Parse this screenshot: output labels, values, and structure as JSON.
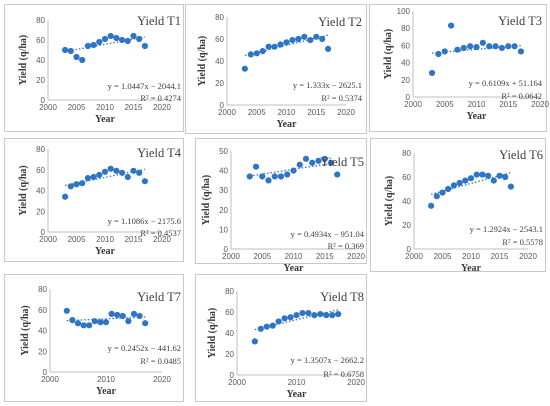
{
  "colors": {
    "point": "#2e75c6",
    "trend": "#2e75c6",
    "axis": "#bfbfbf",
    "text": "#404040"
  },
  "chart_data": [
    {
      "type": "scatter",
      "title": "Yield T1",
      "xlabel": "Year",
      "ylabel": "Yield (q/ha)",
      "xlim": [
        2000,
        2020
      ],
      "ylim": [
        0,
        80
      ],
      "xticks": [
        "2000",
        "2005",
        "2010",
        "2015",
        "2020"
      ],
      "yticks": [
        "0",
        "20",
        "40",
        "60",
        "80"
      ],
      "x": [
        2003,
        2004,
        2005,
        2006,
        2007,
        2008,
        2009,
        2010,
        2011,
        2012,
        2013,
        2014,
        2015,
        2016,
        2017
      ],
      "y": [
        50,
        49,
        43,
        40,
        54,
        55,
        58,
        61,
        64,
        62,
        60,
        59,
        64,
        61,
        54
      ],
      "equation": "y = 1.0447x − 2044.1",
      "r2": "R² = 0.4274",
      "trend": {
        "slope": 1.0447,
        "intercept": -2044.1
      }
    },
    {
      "type": "scatter",
      "title": "Yield T2",
      "xlabel": "Year",
      "ylabel": "Yield (q/ha)",
      "xlim": [
        2000,
        2020
      ],
      "ylim": [
        0,
        80
      ],
      "xticks": [
        "2000",
        "2005",
        "2010",
        "2015",
        "2020"
      ],
      "yticks": [
        "0",
        "20",
        "40",
        "60",
        "80"
      ],
      "x": [
        2003,
        2004,
        2005,
        2006,
        2007,
        2008,
        2009,
        2010,
        2011,
        2012,
        2013,
        2014,
        2015,
        2016,
        2017
      ],
      "y": [
        33,
        46,
        47,
        49,
        53,
        53,
        55,
        57,
        59,
        60,
        62,
        59,
        62,
        60,
        51
      ],
      "equation": "y = 1.333x − 2625.1",
      "r2": "R² = 0.5374",
      "trend": {
        "slope": 1.333,
        "intercept": -2625.1
      }
    },
    {
      "type": "scatter",
      "title": "Yield T3",
      "xlabel": "Year",
      "ylabel": "Yield (q/ha)",
      "xlim": [
        2000,
        2020
      ],
      "ylim": [
        0,
        100
      ],
      "xticks": [
        "2000",
        "2005",
        "2010",
        "2015",
        "2020"
      ],
      "yticks": [
        "0",
        "20",
        "40",
        "60",
        "80",
        "100"
      ],
      "x": [
        2003,
        2004,
        2005,
        2006,
        2007,
        2008,
        2009,
        2010,
        2011,
        2012,
        2013,
        2014,
        2015,
        2016,
        2017
      ],
      "y": [
        28,
        50,
        53,
        83,
        55,
        57,
        59,
        58,
        63,
        59,
        59,
        57,
        59,
        59,
        53
      ],
      "equation": "y = 0.6109x + 51.164",
      "r2": "R² = 0.0642",
      "trend": {
        "slope": 0.6109,
        "intercept": 51.164,
        "x0": 2003
      }
    },
    {
      "type": "scatter",
      "title": "Yield T4",
      "xlabel": "Year",
      "ylabel": "Yield (q/ha)",
      "xlim": [
        2000,
        2020
      ],
      "ylim": [
        0,
        80
      ],
      "xticks": [
        "2000",
        "2005",
        "2010",
        "2015",
        "2020"
      ],
      "yticks": [
        "0",
        "20",
        "40",
        "60",
        "80"
      ],
      "x": [
        2003,
        2004,
        2005,
        2006,
        2007,
        2008,
        2009,
        2010,
        2011,
        2012,
        2013,
        2014,
        2015,
        2016,
        2017
      ],
      "y": [
        34,
        44,
        46,
        47,
        52,
        53,
        55,
        58,
        61,
        59,
        57,
        53,
        59,
        57,
        49
      ],
      "equation": "y = 1.1086x − 2175.6",
      "r2": "R² = 0.4537",
      "trend": {
        "slope": 1.1086,
        "intercept": -2175.6
      }
    },
    {
      "type": "scatter",
      "title": "Yield T5",
      "xlabel": "Year",
      "ylabel": "Yield (q/ha)",
      "xlim": [
        2000,
        2020
      ],
      "ylim": [
        0,
        50
      ],
      "xticks": [
        "2000",
        "2005",
        "2010",
        "2015",
        "2020"
      ],
      "yticks": [
        "0",
        "10",
        "20",
        "30",
        "40",
        "50"
      ],
      "x": [
        2003,
        2004,
        2005,
        2006,
        2007,
        2008,
        2009,
        2010,
        2011,
        2012,
        2013,
        2014,
        2015,
        2016,
        2017
      ],
      "y": [
        37,
        42,
        37,
        35,
        37,
        37,
        38,
        40,
        43,
        46,
        44,
        45,
        46,
        44,
        38
      ],
      "equation": "y = 0.4934x − 951.04",
      "r2": "R² = 0.369",
      "trend": {
        "slope": 0.4934,
        "intercept": -951.04
      }
    },
    {
      "type": "scatter",
      "title": "Yield T6",
      "xlabel": "Year",
      "ylabel": "Yield (q/ha)",
      "xlim": [
        2000,
        2020
      ],
      "ylim": [
        0,
        80
      ],
      "xticks": [
        "2000",
        "2005",
        "2010",
        "2015",
        "2020"
      ],
      "yticks": [
        "0",
        "20",
        "40",
        "60",
        "80"
      ],
      "x": [
        2003,
        2004,
        2005,
        2006,
        2007,
        2008,
        2009,
        2010,
        2011,
        2012,
        2013,
        2014,
        2015,
        2016,
        2017
      ],
      "y": [
        36,
        44,
        47,
        50,
        53,
        55,
        57,
        59,
        62,
        62,
        61,
        57,
        61,
        60,
        52
      ],
      "equation": "y = 1.2924x − 2543.1",
      "r2": "R² = 0.5578",
      "trend": {
        "slope": 1.2924,
        "intercept": -2543.1
      }
    },
    {
      "type": "scatter",
      "title": "Yield T7",
      "xlabel": "Year",
      "ylabel": "Yield (q/ha)",
      "xlim": [
        2000,
        2020
      ],
      "ylim": [
        0,
        80
      ],
      "xticks": [
        "2000",
        "2010",
        "2020"
      ],
      "yticks": [
        "0",
        "20",
        "40",
        "60",
        "80"
      ],
      "x": [
        2003,
        2004,
        2005,
        2006,
        2007,
        2008,
        2009,
        2010,
        2011,
        2012,
        2013,
        2014,
        2015,
        2016,
        2017
      ],
      "y": [
        59,
        50,
        47,
        45,
        45,
        49,
        48,
        48,
        56,
        55,
        54,
        49,
        56,
        54,
        47
      ],
      "equation": "y = 0.2452x − 441.62",
      "r2": "R² = 0.0485",
      "trend": {
        "slope": 0.2452,
        "intercept": -441.62
      }
    },
    {
      "type": "scatter",
      "title": "Yield T8",
      "xlabel": "Year",
      "ylabel": "Yield (q/ha)",
      "xlim": [
        2000,
        2020
      ],
      "ylim": [
        0,
        80
      ],
      "xticks": [
        "2000",
        "2010",
        "2020"
      ],
      "yticks": [
        "0",
        "20",
        "40",
        "60",
        "80"
      ],
      "x": [
        2003,
        2004,
        2005,
        2006,
        2007,
        2008,
        2009,
        2010,
        2011,
        2012,
        2013,
        2014,
        2015,
        2016,
        2017
      ],
      "y": [
        32,
        44,
        46,
        47,
        51,
        54,
        55,
        57,
        59,
        59,
        57,
        58,
        57,
        57,
        58
      ],
      "equation": "y = 1.3507x − 2662.2",
      "r2": "R² = 0.6758",
      "trend": {
        "slope": 1.3507,
        "intercept": -2662.2
      }
    }
  ]
}
